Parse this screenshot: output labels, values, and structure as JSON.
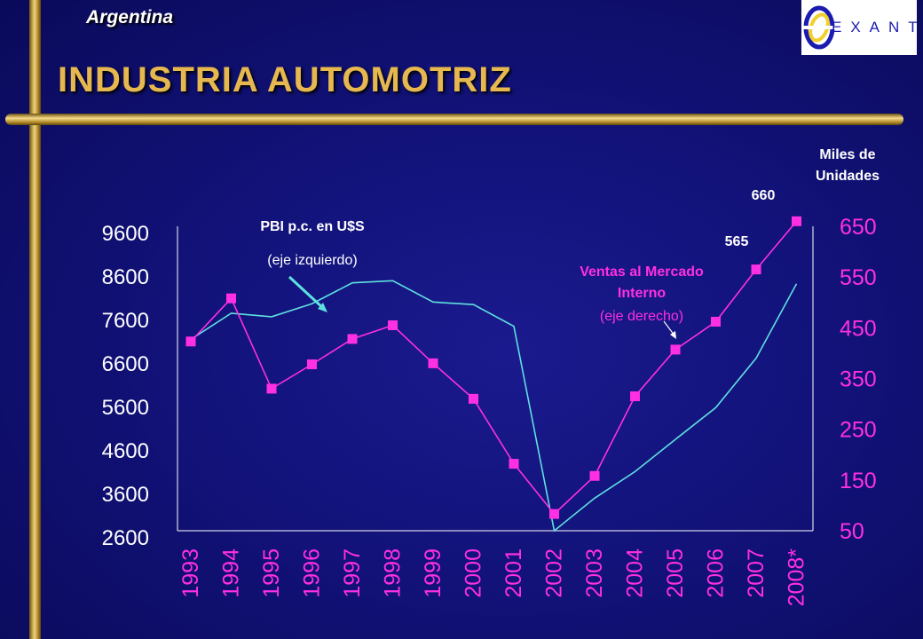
{
  "header": {
    "country": "Argentina",
    "title": "INDUSTRIA AUTOMOTRIZ",
    "logo_text": "EXANTE"
  },
  "colors": {
    "gdp_line": "#5fe0e0",
    "sales_line": "#ff2fe3",
    "left_axis_text": "#ffffff",
    "right_axis_text": "#ff2fe3",
    "title_gold": "#e7b84f"
  },
  "annotations": {
    "gdp_name": "PBI p.c. en U$S",
    "gdp_axis": "(eje izquierdo)",
    "sales_name_1": "Ventas al Mercado",
    "sales_name_2": "Interno",
    "sales_axis": "(eje derecho)",
    "right_unit_1": "Miles de",
    "right_unit_2": "Unidades",
    "label_2007": "565",
    "label_2008": "660"
  },
  "chart_data": {
    "type": "line",
    "categories": [
      "1993",
      "1994",
      "1995",
      "1996",
      "1997",
      "1998",
      "1999",
      "2000",
      "2001",
      "2002",
      "2003",
      "2004",
      "2005",
      "2006",
      "2007",
      "2008*"
    ],
    "left_axis": {
      "ticks": [
        9600,
        8600,
        7600,
        6600,
        5600,
        4600,
        3600,
        2600
      ],
      "ylim": [
        2600,
        9600
      ]
    },
    "right_axis": {
      "ticks": [
        650,
        550,
        450,
        350,
        250,
        150,
        50
      ],
      "ylim": [
        50,
        650
      ]
    },
    "series": [
      {
        "name": "PBI p.c. en U$S",
        "axis": "left",
        "marker": false,
        "values": [
          7000,
          7600,
          7520,
          7820,
          8300,
          8350,
          7860,
          7800,
          7300,
          2600,
          3350,
          3960,
          4700,
          5430,
          6570,
          8280
        ]
      },
      {
        "name": "Ventas al Mercado Interno",
        "axis": "right",
        "marker": true,
        "values": [
          423,
          508,
          330,
          378,
          428,
          455,
          380,
          310,
          182,
          83,
          158,
          315,
          407,
          462,
          565,
          660
        ]
      }
    ]
  }
}
